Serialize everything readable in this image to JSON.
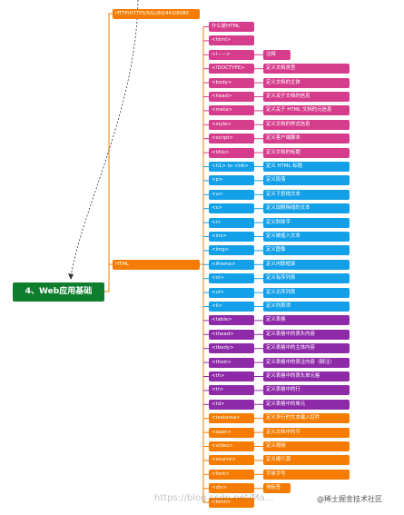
{
  "root": {
    "label": "4、Web应用基础"
  },
  "branches": {
    "http": "HTTP/HTTPS/SSL/80/443/8080",
    "html": "HTML"
  },
  "top_items": [
    {
      "label": "什么是HTML",
      "color": "pink"
    },
    {
      "label": "<html>",
      "color": "pink"
    }
  ],
  "rows": [
    {
      "tag": "<!-- -->",
      "desc": "注释",
      "color": "pink"
    },
    {
      "tag": "<!DOCTYPE>",
      "desc": "定义文档类型",
      "color": "pink"
    },
    {
      "tag": "<body>",
      "desc": "定义文档的主体",
      "color": "pink"
    },
    {
      "tag": "<head>",
      "desc": "定义关于文档的信息",
      "color": "pink"
    },
    {
      "tag": "<meta>",
      "desc": "定义关于 HTML 文档的元信息",
      "color": "pink"
    },
    {
      "tag": "<style>",
      "desc": "定义文档的样式信息",
      "color": "pink"
    },
    {
      "tag": "<script>",
      "desc": "定义客户端脚本",
      "color": "pink"
    },
    {
      "tag": "<title>",
      "desc": "定义文档的标题",
      "color": "pink"
    },
    {
      "tag": "<h1> to <h6>",
      "desc": "定义 HTML 标题",
      "color": "blue"
    },
    {
      "tag": "<p>",
      "desc": "定义段落",
      "color": "blue"
    },
    {
      "tag": "<u>",
      "desc": "定义下划线文本",
      "color": "blue"
    },
    {
      "tag": "<s>",
      "desc": "定义加删除线的文本",
      "color": "blue"
    },
    {
      "tag": "<i>",
      "desc": "定义斜体字",
      "color": "blue"
    },
    {
      "tag": "<ins>",
      "desc": "定义被插入文本",
      "color": "blue"
    },
    {
      "tag": "<img>",
      "desc": "定义图像",
      "color": "blue"
    },
    {
      "tag": "<iframe>",
      "desc": "定义内联框架",
      "color": "blue"
    },
    {
      "tag": "<ol>",
      "desc": "定义有序列表",
      "color": "blue"
    },
    {
      "tag": "<ul>",
      "desc": "定义无序列表",
      "color": "blue"
    },
    {
      "tag": "<li>",
      "desc": "定义列表项",
      "color": "blue"
    },
    {
      "tag": "<table>",
      "desc": "定义表格",
      "color": "purple"
    },
    {
      "tag": "<thead>",
      "desc": "定义表格中的表头内容",
      "color": "purple"
    },
    {
      "tag": "<tbody>",
      "desc": "定义表格中的主体内容",
      "color": "purple"
    },
    {
      "tag": "<tfoot>",
      "desc": "定义表格中的表注内容（脚注）",
      "color": "purple"
    },
    {
      "tag": "<th>",
      "desc": "定义表格中的表头单元格",
      "color": "purple"
    },
    {
      "tag": "<tr>",
      "desc": "定义表格中的行",
      "color": "purple"
    },
    {
      "tag": "<td>",
      "desc": "定义表格中的单元",
      "color": "purple"
    },
    {
      "tag": "<textarea>",
      "desc": "定义多行的文本输入控件",
      "color": "orange"
    },
    {
      "tag": "<span>",
      "desc": "定义文档中的节",
      "color": "orange"
    },
    {
      "tag": "<video>",
      "desc": "定义视频",
      "color": "orange"
    },
    {
      "tag": "<source>",
      "desc": "定义媒介源",
      "color": "orange"
    },
    {
      "tag": "<font>",
      "desc": "字体字号",
      "color": "orange"
    },
    {
      "tag": "<div>",
      "desc": "块标签",
      "color": "orange"
    },
    {
      "tag": "<form>",
      "desc": "",
      "color": "orange"
    }
  ],
  "watermark": "https://blog.csdn.net/Ma...",
  "brand": "@稀土掘金技术社区",
  "colors": {
    "orange": "#f57c00",
    "pink": "#d63c8c",
    "blue": "#13a0e8",
    "purple": "#8e2aa8",
    "root": "#0f7d2e"
  }
}
